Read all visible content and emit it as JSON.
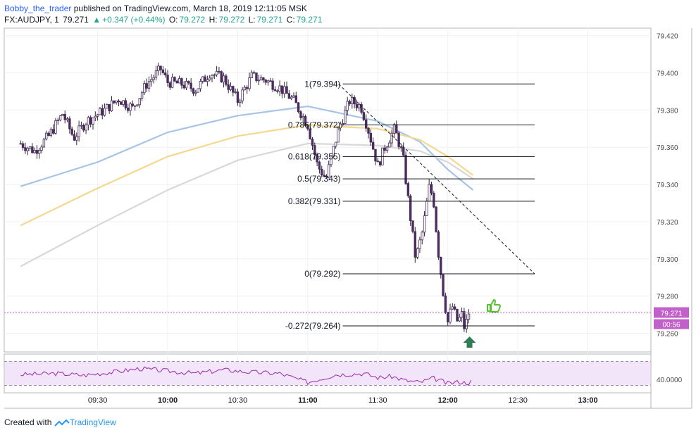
{
  "header": {
    "author": "Bobby_the_trader",
    "published_text": "published on TradingView.com, March 18, 2019 12:11:05 MSK",
    "symbol": "FX:AUDJPY, 1",
    "last": "79.271",
    "change": "+0.347 (+0.44%)",
    "o_label": "O:",
    "o_value": "79.272",
    "h_label": "H:",
    "h_value": "79.272",
    "l_label": "L:",
    "l_value": "79.271",
    "c_label": "C:",
    "c_value": "79.271"
  },
  "footer": {
    "created_with": "Created with",
    "brand": "TradingView"
  },
  "colors": {
    "candle_body": "#4a2d5e",
    "candle_wick": "#2b2b2b",
    "ma_blue": "#a8c4e6",
    "ma_yellow": "#f4d890",
    "ma_gray": "#d8d8d8",
    "rsi_line": "#9c27b0",
    "rsi_band": "#f3e5f9",
    "price_tag": "#c060c8",
    "thumb_icon": "#59c130",
    "arrow_icon": "#2e7d54",
    "fib_line": "#131722"
  },
  "chart_data": {
    "type": "candlestick",
    "instrument": "FX:AUDJPY",
    "interval": "1",
    "x_tick_labels": [
      "09:30",
      "10:00",
      "10:30",
      "11:00",
      "11:30",
      "12:00",
      "12:30",
      "13:00"
    ],
    "y_tick_labels": [
      "79.420",
      "79.400",
      "79.380",
      "79.360",
      "79.340",
      "79.320",
      "79.300",
      "79.280",
      "79.260"
    ],
    "ylim": [
      79.25,
      79.424
    ],
    "grid": true,
    "last_price_label": "79.271",
    "countdown_label": "00:56",
    "close_path": [
      [
        8.95,
        79.362
      ],
      [
        9.05,
        79.358
      ],
      [
        9.15,
        79.366
      ],
      [
        9.25,
        79.378
      ],
      [
        9.33,
        79.365
      ],
      [
        9.42,
        79.374
      ],
      [
        9.55,
        79.38
      ],
      [
        9.65,
        79.386
      ],
      [
        9.75,
        79.381
      ],
      [
        9.85,
        79.394
      ],
      [
        9.95,
        79.402
      ],
      [
        10.0,
        79.395
      ],
      [
        10.1,
        79.394
      ],
      [
        10.2,
        79.391
      ],
      [
        10.3,
        79.4
      ],
      [
        10.4,
        79.397
      ],
      [
        10.5,
        79.385
      ],
      [
        10.6,
        79.398
      ],
      [
        10.7,
        79.396
      ],
      [
        10.8,
        79.392
      ],
      [
        10.9,
        79.385
      ],
      [
        11.0,
        79.372
      ],
      [
        11.07,
        79.35
      ],
      [
        11.13,
        79.343
      ],
      [
        11.22,
        79.37
      ],
      [
        11.3,
        79.385
      ],
      [
        11.38,
        79.382
      ],
      [
        11.43,
        79.37
      ],
      [
        11.5,
        79.35
      ],
      [
        11.55,
        79.36
      ],
      [
        11.62,
        79.37
      ],
      [
        11.68,
        79.355
      ],
      [
        11.72,
        79.33
      ],
      [
        11.77,
        79.3
      ],
      [
        11.82,
        79.315
      ],
      [
        11.87,
        79.34
      ],
      [
        11.9,
        79.33
      ],
      [
        11.93,
        79.305
      ],
      [
        11.97,
        79.28
      ],
      [
        12.0,
        79.266
      ],
      [
        12.03,
        79.275
      ],
      [
        12.07,
        79.266
      ],
      [
        12.1,
        79.27
      ],
      [
        12.12,
        79.262
      ],
      [
        12.15,
        79.271
      ]
    ],
    "moving_averages": [
      {
        "color": "ma_blue",
        "path": [
          [
            8.95,
            79.339
          ],
          [
            9.5,
            79.352
          ],
          [
            10.0,
            79.368
          ],
          [
            10.5,
            79.377
          ],
          [
            11.0,
            79.382
          ],
          [
            11.5,
            79.374
          ],
          [
            11.8,
            79.363
          ],
          [
            12.0,
            79.348
          ],
          [
            12.18,
            79.337
          ]
        ]
      },
      {
        "color": "ma_yellow",
        "path": [
          [
            8.95,
            79.318
          ],
          [
            9.5,
            79.338
          ],
          [
            10.0,
            79.355
          ],
          [
            10.5,
            79.366
          ],
          [
            11.0,
            79.372
          ],
          [
            11.5,
            79.37
          ],
          [
            11.8,
            79.364
          ],
          [
            12.0,
            79.355
          ],
          [
            12.18,
            79.345
          ]
        ]
      },
      {
        "color": "ma_gray",
        "path": [
          [
            8.95,
            79.296
          ],
          [
            9.5,
            79.318
          ],
          [
            10.0,
            79.337
          ],
          [
            10.5,
            79.353
          ],
          [
            11.0,
            79.362
          ],
          [
            11.5,
            79.361
          ],
          [
            11.8,
            79.358
          ],
          [
            12.0,
            79.352
          ],
          [
            12.18,
            79.343
          ]
        ]
      }
    ],
    "fib_levels": [
      {
        "label": "1(79.394)",
        "price": 79.394
      },
      {
        "label": "0.786(79.372)",
        "price": 79.372
      },
      {
        "label": "0.618(79.355)",
        "price": 79.355
      },
      {
        "label": "0.5(79.343)",
        "price": 79.343
      },
      {
        "label": "0.382(79.331)",
        "price": 79.331
      },
      {
        "label": "0(79.292)",
        "price": 79.292
      },
      {
        "label": "-0.272(79.264)",
        "price": 79.264
      }
    ],
    "fib_x_range": [
      11.25,
      12.62
    ],
    "trend_line": [
      [
        11.22,
        79.394
      ],
      [
        12.62,
        79.292
      ]
    ],
    "rsi": {
      "label": "40.0000",
      "ylim": [
        20,
        80
      ],
      "band": [
        30,
        70
      ],
      "path": [
        [
          8.95,
          48
        ],
        [
          9.2,
          50
        ],
        [
          9.4,
          47
        ],
        [
          9.6,
          52
        ],
        [
          9.8,
          58
        ],
        [
          10.0,
          54
        ],
        [
          10.2,
          50
        ],
        [
          10.4,
          56
        ],
        [
          10.6,
          52
        ],
        [
          10.8,
          50
        ],
        [
          11.0,
          35
        ],
        [
          11.2,
          48
        ],
        [
          11.4,
          50
        ],
        [
          11.5,
          43
        ],
        [
          11.6,
          45
        ],
        [
          11.7,
          38
        ],
        [
          11.8,
          35
        ],
        [
          11.9,
          42
        ],
        [
          12.0,
          33
        ],
        [
          12.08,
          36
        ],
        [
          12.14,
          34
        ],
        [
          12.18,
          38
        ]
      ]
    }
  }
}
